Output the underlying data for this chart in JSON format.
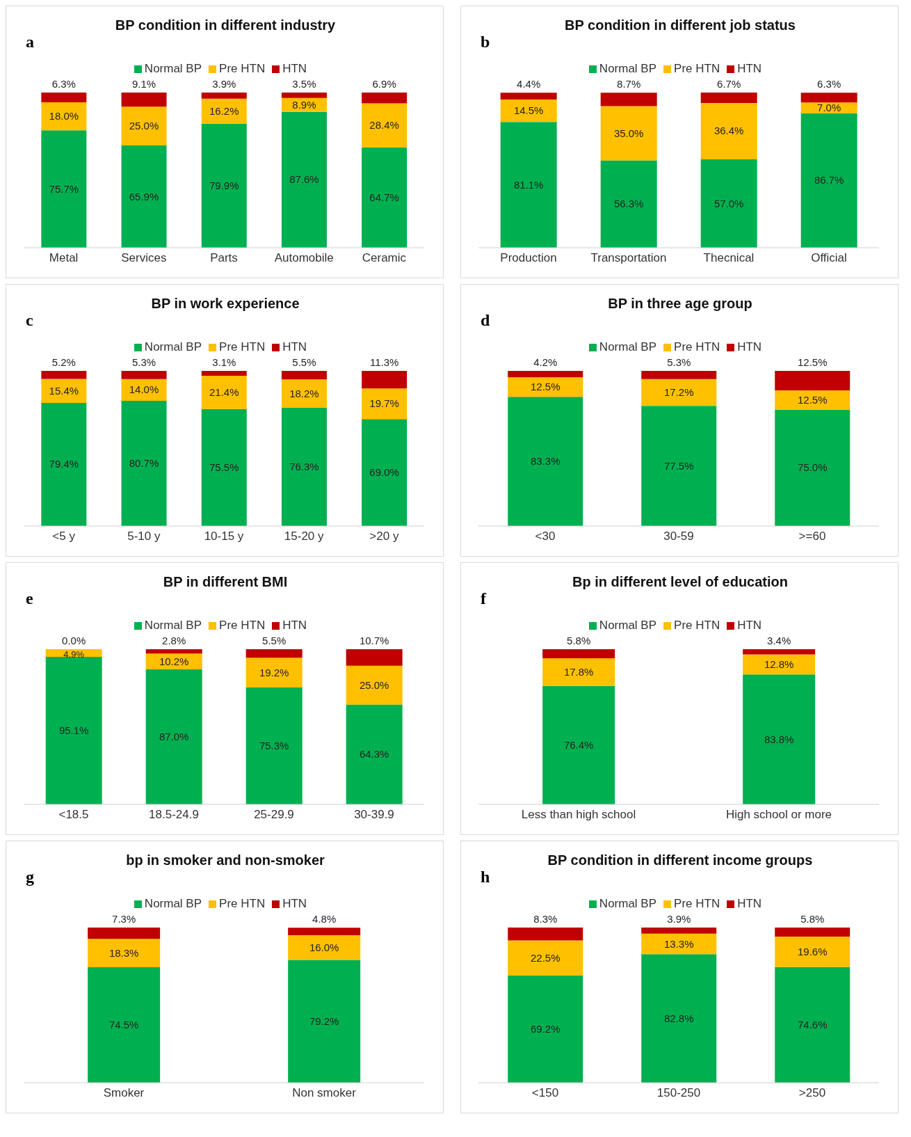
{
  "chart_data": [
    {
      "type": "bar",
      "stacked": true,
      "title": "BP condition in different industry",
      "annotations": [
        "a"
      ],
      "categories": [
        "Metal",
        "Services",
        "Parts",
        "Automobile",
        "Ceramic"
      ],
      "legend": "top",
      "tick_labels": "x",
      "series": [
        {
          "name": "Normal BP",
          "color": "#00b050",
          "values": [
            75.7,
            65.9,
            79.9,
            87.6,
            64.7
          ],
          "value_labels": [
            "75.7%",
            "65.9%",
            "79.9%",
            "87.6%",
            "64.7%"
          ]
        },
        {
          "name": "Pre HTN",
          "color": "#ffc000",
          "values": [
            18.0,
            25.0,
            16.2,
            8.9,
            28.4
          ],
          "value_labels": [
            "18.0%",
            "25.0%",
            "16.2%",
            "8.9%",
            "28.4%"
          ]
        },
        {
          "name": "HTN",
          "color": "#c00000",
          "values": [
            6.3,
            9.1,
            3.9,
            3.5,
            6.9
          ],
          "value_labels": [
            "6.3%",
            "9.1%",
            "3.9%",
            "3.5%",
            "6.9%"
          ]
        }
      ]
    },
    {
      "type": "bar",
      "stacked": true,
      "title": "BP condition in different job status",
      "annotations": [
        "b"
      ],
      "categories": [
        "Production",
        "Transportation",
        "Thecnical",
        "Official"
      ],
      "legend": "top",
      "tick_labels": "x",
      "series": [
        {
          "name": "Normal BP",
          "color": "#00b050",
          "values": [
            81.1,
            56.3,
            57.0,
            86.7
          ],
          "value_labels": [
            "81.1%",
            "56.3%",
            "57.0%",
            "86.7%"
          ]
        },
        {
          "name": "Pre HTN",
          "color": "#ffc000",
          "values": [
            14.5,
            35.0,
            36.4,
            7.0
          ],
          "value_labels": [
            "14.5%",
            "35.0%",
            "36.4%",
            "7.0%"
          ]
        },
        {
          "name": "HTN",
          "color": "#c00000",
          "values": [
            4.4,
            8.7,
            6.7,
            6.3
          ],
          "value_labels": [
            "4.4%",
            "8.7%",
            "6.7%",
            "6.3%"
          ]
        }
      ]
    },
    {
      "type": "bar",
      "stacked": true,
      "title": "BP in work experience",
      "annotations": [
        "c"
      ],
      "categories": [
        "<5 y",
        "5-10 y",
        "10-15 y",
        "15-20 y",
        ">20 y"
      ],
      "legend": "top",
      "tick_labels": "x",
      "series": [
        {
          "name": "Normal BP",
          "color": "#00b050",
          "values": [
            79.4,
            80.7,
            75.5,
            76.3,
            69.0
          ],
          "value_labels": [
            "79.4%",
            "80.7%",
            "75.5%",
            "76.3%",
            "69.0%"
          ]
        },
        {
          "name": "Pre HTN",
          "color": "#ffc000",
          "values": [
            15.4,
            14.0,
            21.4,
            18.2,
            19.7
          ],
          "value_labels": [
            "15.4%",
            "14.0%",
            "21.4%",
            "18.2%",
            "19.7%"
          ]
        },
        {
          "name": "HTN",
          "color": "#c00000",
          "values": [
            5.2,
            5.3,
            3.1,
            5.5,
            11.3
          ],
          "value_labels": [
            "5.2%",
            "5.3%",
            "3.1%",
            "5.5%",
            "11.3%"
          ]
        }
      ]
    },
    {
      "type": "bar",
      "stacked": true,
      "title": "BP in three age group",
      "annotations": [
        "d"
      ],
      "categories": [
        "<30",
        "30-59",
        ">=60"
      ],
      "legend": "top",
      "tick_labels": "x",
      "series": [
        {
          "name": "Normal BP",
          "color": "#00b050",
          "values": [
            83.3,
            77.5,
            75.0
          ],
          "value_labels": [
            "83.3%",
            "77.5%",
            "75.0%"
          ]
        },
        {
          "name": "Pre HTN",
          "color": "#ffc000",
          "values": [
            12.5,
            17.2,
            12.5
          ],
          "value_labels": [
            "12.5%",
            "17.2%",
            "12.5%"
          ]
        },
        {
          "name": "HTN",
          "color": "#c00000",
          "values": [
            4.2,
            5.3,
            12.5
          ],
          "value_labels": [
            "4.2%",
            "5.3%",
            "12.5%"
          ]
        }
      ]
    },
    {
      "type": "bar",
      "stacked": true,
      "title": "BP in different BMI",
      "annotations": [
        "e"
      ],
      "categories": [
        "<18.5",
        "18.5-24.9",
        "25-29.9",
        "30-39.9"
      ],
      "legend": "top",
      "tick_labels": "x",
      "series": [
        {
          "name": "Normal BP",
          "color": "#00b050",
          "values": [
            95.1,
            87.0,
            75.3,
            64.3
          ],
          "value_labels": [
            "95.1%",
            "87.0%",
            "75.3%",
            "64.3%"
          ]
        },
        {
          "name": "Pre HTN",
          "color": "#ffc000",
          "values": [
            4.9,
            10.2,
            19.2,
            25.0
          ],
          "value_labels": [
            "4.9%",
            "10.2%",
            "19.2%",
            "25.0%"
          ]
        },
        {
          "name": "HTN",
          "color": "#c00000",
          "values": [
            0.0,
            2.8,
            5.5,
            10.7
          ],
          "value_labels": [
            "0.0%",
            "2.8%",
            "5.5%",
            "10.7%"
          ]
        }
      ]
    },
    {
      "type": "bar",
      "stacked": true,
      "title": "Bp in different level of education",
      "annotations": [
        "f"
      ],
      "categories": [
        "Less than high school",
        "High school or more"
      ],
      "legend": "top",
      "tick_labels": "x",
      "series": [
        {
          "name": "Normal BP",
          "color": "#00b050",
          "values": [
            76.4,
            83.8
          ],
          "value_labels": [
            "76.4%",
            "83.8%"
          ]
        },
        {
          "name": "Pre HTN",
          "color": "#ffc000",
          "values": [
            17.8,
            12.8
          ],
          "value_labels": [
            "17.8%",
            "12.8%"
          ]
        },
        {
          "name": "HTN",
          "color": "#c00000",
          "values": [
            5.8,
            3.4
          ],
          "value_labels": [
            "5.8%",
            "3.4%"
          ]
        }
      ]
    },
    {
      "type": "bar",
      "stacked": true,
      "title": "bp in smoker and non-smoker",
      "annotations": [
        "g"
      ],
      "categories": [
        "Smoker",
        "Non smoker"
      ],
      "legend": "top",
      "tick_labels": "x",
      "series": [
        {
          "name": "Normal BP",
          "color": "#00b050",
          "values": [
            74.5,
            79.2
          ],
          "value_labels": [
            "74.5%",
            "79.2%"
          ]
        },
        {
          "name": "Pre HTN",
          "color": "#ffc000",
          "values": [
            18.3,
            16.0
          ],
          "value_labels": [
            "18.3%",
            "16.0%"
          ]
        },
        {
          "name": "HTN",
          "color": "#c00000",
          "values": [
            7.3,
            4.8
          ],
          "value_labels": [
            "7.3%",
            "4.8%"
          ]
        }
      ]
    },
    {
      "type": "bar",
      "stacked": true,
      "title": "BP condition in different income groups",
      "annotations": [
        "h"
      ],
      "categories": [
        "<150",
        "150-250",
        ">250"
      ],
      "legend": "top",
      "tick_labels": "x",
      "series": [
        {
          "name": "Normal BP",
          "color": "#00b050",
          "values": [
            69.2,
            82.8,
            74.6
          ],
          "value_labels": [
            "69.2%",
            "82.8%",
            "74.6%"
          ]
        },
        {
          "name": "Pre HTN",
          "color": "#ffc000",
          "values": [
            22.5,
            13.3,
            19.6
          ],
          "value_labels": [
            "22.5%",
            "13.3%",
            "19.6%"
          ]
        },
        {
          "name": "HTN",
          "color": "#c00000",
          "values": [
            8.3,
            3.9,
            5.8
          ],
          "value_labels": [
            "8.3%",
            "3.9%",
            "5.8%"
          ]
        }
      ]
    }
  ]
}
